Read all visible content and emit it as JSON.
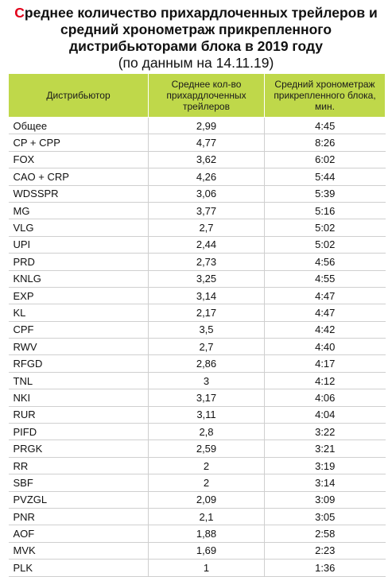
{
  "title_first_letter": "С",
  "title_rest": "реднее количество прихардлоченных трейлеров и средний хронометраж прикрепленного дистрибьюторами блока в 2019 году",
  "subtitle": "(по данным на 14.11.19)",
  "colors": {
    "header_bg": "#bfd84a",
    "title_accent": "#e2001a"
  },
  "headers": {
    "distributor": "Дистрибьютор",
    "avg_trailers": "Среднее кол-во прихардлоченных трейлеров",
    "avg_duration": "Средний хронометраж прикрепленного блока, мин."
  },
  "rows": [
    {
      "name": "Общее",
      "trailers": "2,99",
      "duration": "4:45"
    },
    {
      "name": "CP + CPP",
      "trailers": "4,77",
      "duration": "8:26"
    },
    {
      "name": "FOX",
      "trailers": "3,62",
      "duration": "6:02"
    },
    {
      "name": "CAO + CRP",
      "trailers": "4,26",
      "duration": "5:44"
    },
    {
      "name": "WDSSPR",
      "trailers": "3,06",
      "duration": "5:39"
    },
    {
      "name": "MG",
      "trailers": "3,77",
      "duration": "5:16"
    },
    {
      "name": "VLG",
      "trailers": "2,7",
      "duration": "5:02"
    },
    {
      "name": "UPI",
      "trailers": "2,44",
      "duration": "5:02"
    },
    {
      "name": "PRD",
      "trailers": "2,73",
      "duration": "4:56"
    },
    {
      "name": "KNLG",
      "trailers": "3,25",
      "duration": "4:55"
    },
    {
      "name": "EXP",
      "trailers": "3,14",
      "duration": "4:47"
    },
    {
      "name": "KL",
      "trailers": "2,17",
      "duration": "4:47"
    },
    {
      "name": "CPF",
      "trailers": "3,5",
      "duration": "4:42"
    },
    {
      "name": "RWV",
      "trailers": "2,7",
      "duration": "4:40"
    },
    {
      "name": "RFGD",
      "trailers": "2,86",
      "duration": "4:17"
    },
    {
      "name": "TNL",
      "trailers": "3",
      "duration": "4:12"
    },
    {
      "name": "NKI",
      "trailers": "3,17",
      "duration": "4:06"
    },
    {
      "name": "RUR",
      "trailers": "3,11",
      "duration": "4:04"
    },
    {
      "name": "PIFD",
      "trailers": "2,8",
      "duration": "3:22"
    },
    {
      "name": "PRGK",
      "trailers": "2,59",
      "duration": "3:21"
    },
    {
      "name": "RR",
      "trailers": "2",
      "duration": "3:19"
    },
    {
      "name": "SBF",
      "trailers": "2",
      "duration": "3:14"
    },
    {
      "name": "PVZGL",
      "trailers": "2,09",
      "duration": "3:09"
    },
    {
      "name": "PNR",
      "trailers": "2,1",
      "duration": "3:05"
    },
    {
      "name": "AOF",
      "trailers": "1,88",
      "duration": "2:58"
    },
    {
      "name": "MVK",
      "trailers": "1,69",
      "duration": "2:23"
    },
    {
      "name": "PLK",
      "trailers": "1",
      "duration": "1:36"
    }
  ]
}
